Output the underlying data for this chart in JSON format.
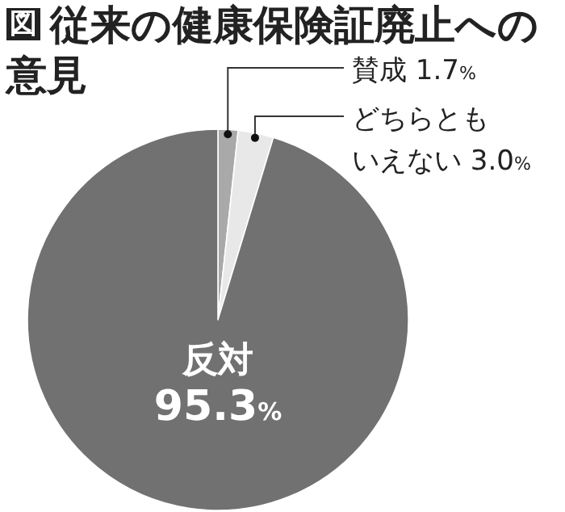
{
  "chart_data": {
    "type": "pie",
    "title": "従来の健康保険証廃止への意見",
    "annotations": [
      "図"
    ],
    "categories": [
      "賛成",
      "どちらともいえない",
      "反対"
    ],
    "values": [
      1.7,
      3.0,
      95.3
    ],
    "colors": [
      "#a9a9a9",
      "#e8e8e8",
      "#717171"
    ],
    "value_labels": [
      "1.7%",
      "3.0%",
      "95.3%"
    ]
  }
}
